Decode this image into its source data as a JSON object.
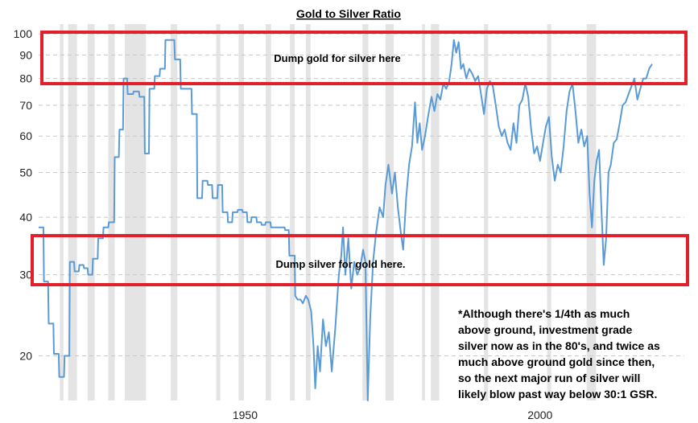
{
  "chart_data": {
    "type": "line",
    "title": "Gold to Silver Ratio",
    "xlabel": "",
    "ylabel": "",
    "y_scale": "log",
    "ylim": [
      16,
      105
    ],
    "xlim": [
      1915,
      2019
    ],
    "x_ticks": [
      "1950",
      "2000"
    ],
    "y_ticks": [
      "20",
      "30",
      "40",
      "50",
      "60",
      "70",
      "80",
      "90",
      "100"
    ],
    "grid": true,
    "series_color": "#5b9bd5",
    "recession_shading_color": "#e4e4e4",
    "recessions": [
      [
        1918.6,
        1919.2
      ],
      [
        1920.0,
        1921.5
      ],
      [
        1923.3,
        1924.5
      ],
      [
        1926.8,
        1927.9
      ],
      [
        1929.6,
        1933.2
      ],
      [
        1937.4,
        1938.5
      ],
      [
        1945.1,
        1945.8
      ],
      [
        1948.9,
        1949.8
      ],
      [
        1953.5,
        1954.4
      ],
      [
        1957.6,
        1958.4
      ],
      [
        1960.3,
        1961.1
      ],
      [
        1969.9,
        1970.9
      ],
      [
        1973.8,
        1975.2
      ],
      [
        1980.0,
        1980.5
      ],
      [
        1981.5,
        1982.9
      ],
      [
        1990.5,
        1991.2
      ],
      [
        2001.2,
        2001.9
      ],
      [
        2007.9,
        2009.5
      ]
    ],
    "points": [
      [
        1915.0,
        38
      ],
      [
        1915.8,
        38
      ],
      [
        1915.9,
        29
      ],
      [
        1916.6,
        29
      ],
      [
        1916.7,
        23.5
      ],
      [
        1917.5,
        23.5
      ],
      [
        1917.6,
        20.2
      ],
      [
        1918.4,
        20.2
      ],
      [
        1918.5,
        18
      ],
      [
        1919.3,
        18
      ],
      [
        1919.4,
        20
      ],
      [
        1920.2,
        20
      ],
      [
        1920.3,
        32
      ],
      [
        1921.0,
        32
      ],
      [
        1921.1,
        30.5
      ],
      [
        1921.8,
        30.5
      ],
      [
        1921.9,
        31.5
      ],
      [
        1922.6,
        31.5
      ],
      [
        1922.7,
        31
      ],
      [
        1923.3,
        31
      ],
      [
        1923.4,
        30
      ],
      [
        1924.1,
        30
      ],
      [
        1924.2,
        32.5
      ],
      [
        1925.0,
        32.5
      ],
      [
        1925.1,
        36
      ],
      [
        1925.9,
        36
      ],
      [
        1926.0,
        38
      ],
      [
        1926.8,
        38
      ],
      [
        1926.9,
        39
      ],
      [
        1927.8,
        39
      ],
      [
        1927.9,
        54
      ],
      [
        1928.6,
        54
      ],
      [
        1928.7,
        62
      ],
      [
        1929.3,
        62
      ],
      [
        1929.4,
        80
      ],
      [
        1930.0,
        80
      ],
      [
        1930.1,
        74
      ],
      [
        1931.0,
        74
      ],
      [
        1931.1,
        75
      ],
      [
        1932.0,
        75
      ],
      [
        1932.1,
        73
      ],
      [
        1932.9,
        73
      ],
      [
        1933.0,
        55
      ],
      [
        1933.7,
        55
      ],
      [
        1933.8,
        76
      ],
      [
        1934.6,
        76
      ],
      [
        1934.7,
        81
      ],
      [
        1935.5,
        81
      ],
      [
        1935.6,
        84
      ],
      [
        1936.4,
        84
      ],
      [
        1936.5,
        97
      ],
      [
        1938.0,
        97
      ],
      [
        1938.1,
        88
      ],
      [
        1939.0,
        88
      ],
      [
        1939.1,
        76
      ],
      [
        1940.9,
        76
      ],
      [
        1941.0,
        67
      ],
      [
        1941.8,
        67
      ],
      [
        1941.9,
        44
      ],
      [
        1942.7,
        44
      ],
      [
        1942.8,
        48
      ],
      [
        1943.6,
        48
      ],
      [
        1943.7,
        47
      ],
      [
        1944.4,
        47
      ],
      [
        1944.5,
        44
      ],
      [
        1945.3,
        44
      ],
      [
        1945.4,
        47
      ],
      [
        1946.1,
        47
      ],
      [
        1946.2,
        41
      ],
      [
        1947.0,
        41
      ],
      [
        1947.1,
        39
      ],
      [
        1947.8,
        39
      ],
      [
        1947.9,
        41
      ],
      [
        1948.7,
        41
      ],
      [
        1948.8,
        41.5
      ],
      [
        1949.5,
        41.5
      ],
      [
        1949.6,
        41
      ],
      [
        1950.3,
        41
      ],
      [
        1950.4,
        39
      ],
      [
        1951.0,
        39
      ],
      [
        1951.1,
        40
      ],
      [
        1951.9,
        40
      ],
      [
        1952.0,
        39
      ],
      [
        1952.7,
        39
      ],
      [
        1952.8,
        38.5
      ],
      [
        1953.4,
        38.5
      ],
      [
        1953.5,
        39
      ],
      [
        1954.3,
        39
      ],
      [
        1954.4,
        38
      ],
      [
        1956.7,
        38
      ],
      [
        1956.8,
        37.5
      ],
      [
        1957.4,
        37.5
      ],
      [
        1957.5,
        33
      ],
      [
        1958.4,
        33
      ],
      [
        1958.5,
        27
      ],
      [
        1958.9,
        26.5
      ],
      [
        1959.4,
        26.5
      ],
      [
        1959.8,
        26
      ],
      [
        1960.3,
        27
      ],
      [
        1960.7,
        26.5
      ],
      [
        1961.2,
        25
      ],
      [
        1961.6,
        21
      ],
      [
        1961.9,
        17
      ],
      [
        1962.3,
        21
      ],
      [
        1962.7,
        18.5
      ],
      [
        1963.2,
        24
      ],
      [
        1963.7,
        21
      ],
      [
        1964.2,
        22.5
      ],
      [
        1964.7,
        18.5
      ],
      [
        1965.3,
        23
      ],
      [
        1965.9,
        30
      ],
      [
        1966.3,
        33
      ],
      [
        1966.6,
        38
      ],
      [
        1967.0,
        30
      ],
      [
        1967.5,
        36
      ],
      [
        1968.0,
        28
      ],
      [
        1968.5,
        32
      ],
      [
        1969.0,
        30
      ],
      [
        1969.5,
        31
      ],
      [
        1970.0,
        34
      ],
      [
        1970.4,
        32
      ],
      [
        1970.8,
        16
      ],
      [
        1971.2,
        24
      ],
      [
        1971.7,
        32
      ],
      [
        1972.2,
        37
      ],
      [
        1972.8,
        42
      ],
      [
        1973.4,
        40
      ],
      [
        1973.8,
        47
      ],
      [
        1974.3,
        52
      ],
      [
        1974.9,
        45
      ],
      [
        1975.4,
        50
      ],
      [
        1975.9,
        42
      ],
      [
        1976.4,
        37
      ],
      [
        1976.8,
        34
      ],
      [
        1977.3,
        44
      ],
      [
        1977.8,
        52
      ],
      [
        1978.3,
        57
      ],
      [
        1978.8,
        71
      ],
      [
        1979.2,
        58
      ],
      [
        1979.6,
        64
      ],
      [
        1980.0,
        56
      ],
      [
        1980.5,
        60
      ],
      [
        1981.0,
        66
      ],
      [
        1981.6,
        73
      ],
      [
        1982.1,
        68
      ],
      [
        1982.6,
        74
      ],
      [
        1983.1,
        72
      ],
      [
        1983.6,
        78
      ],
      [
        1984.1,
        76
      ],
      [
        1984.6,
        79
      ],
      [
        1985.0,
        86
      ],
      [
        1985.4,
        97
      ],
      [
        1985.8,
        91
      ],
      [
        1986.2,
        96
      ],
      [
        1986.6,
        84
      ],
      [
        1987.0,
        86
      ],
      [
        1987.5,
        80
      ],
      [
        1988.0,
        84
      ],
      [
        1988.5,
        82
      ],
      [
        1989.0,
        79
      ],
      [
        1989.5,
        81
      ],
      [
        1990.0,
        74
      ],
      [
        1990.5,
        67
      ],
      [
        1991.0,
        76
      ],
      [
        1991.5,
        79
      ],
      [
        1992.0,
        77
      ],
      [
        1992.5,
        70
      ],
      [
        1993.0,
        63
      ],
      [
        1993.5,
        60
      ],
      [
        1994.0,
        62
      ],
      [
        1994.5,
        58
      ],
      [
        1995.0,
        56
      ],
      [
        1995.5,
        64
      ],
      [
        1996.0,
        58
      ],
      [
        1996.5,
        70
      ],
      [
        1997.0,
        72
      ],
      [
        1997.5,
        78
      ],
      [
        1998.0,
        73
      ],
      [
        1998.5,
        62
      ],
      [
        1999.0,
        55
      ],
      [
        1999.5,
        57
      ],
      [
        2000.0,
        53
      ],
      [
        2000.5,
        58
      ],
      [
        2001.0,
        63
      ],
      [
        2001.5,
        66
      ],
      [
        2002.0,
        54
      ],
      [
        2002.5,
        48
      ],
      [
        2003.0,
        52
      ],
      [
        2003.5,
        50
      ],
      [
        2004.0,
        57
      ],
      [
        2004.5,
        68
      ],
      [
        2005.0,
        75
      ],
      [
        2005.5,
        78
      ],
      [
        2006.0,
        68
      ],
      [
        2006.5,
        58
      ],
      [
        2007.0,
        62
      ],
      [
        2007.5,
        57
      ],
      [
        2008.0,
        60
      ],
      [
        2008.4,
        45
      ],
      [
        2008.8,
        38
      ],
      [
        2009.2,
        48
      ],
      [
        2009.6,
        53
      ],
      [
        2010.0,
        56
      ],
      [
        2010.4,
        42
      ],
      [
        2010.8,
        31.5
      ],
      [
        2011.2,
        36
      ],
      [
        2011.6,
        50
      ],
      [
        2012.0,
        52
      ],
      [
        2012.5,
        58
      ],
      [
        2013.0,
        59
      ],
      [
        2013.5,
        64
      ],
      [
        2014.0,
        70
      ],
      [
        2014.5,
        71
      ],
      [
        2015.0,
        74
      ],
      [
        2015.5,
        77
      ],
      [
        2016.0,
        80
      ],
      [
        2016.5,
        72
      ],
      [
        2017.0,
        76
      ],
      [
        2017.5,
        80
      ],
      [
        2018.0,
        80
      ],
      [
        2018.5,
        84
      ],
      [
        2019.0,
        86
      ]
    ]
  },
  "annotations": {
    "top_box_label": "Dump gold for silver here",
    "bottom_box_label": "Dump silver for gold here.",
    "box_color": "#e0202a",
    "note_lines": [
      "*Although there's 1/4th as much",
      "above ground, investment grade",
      "silver now as in the 80's, and twice as",
      "much above ground gold since then,",
      "so the next major run of silver will",
      "likely blow past way below 30:1 GSR."
    ]
  }
}
